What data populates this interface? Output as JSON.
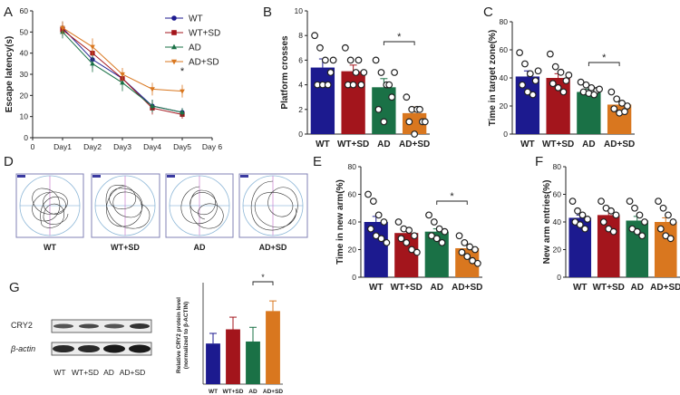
{
  "colors": {
    "wt": "#1c1a8f",
    "wt_sd": "#a3151c",
    "ad": "#1a7146",
    "ad_sd": "#d9771f",
    "axis": "#222222",
    "track_box": "#7f7fb5"
  },
  "panel_labels": [
    "A",
    "B",
    "C",
    "D",
    "E",
    "F",
    "G"
  ],
  "chart_data": [
    {
      "id": "A",
      "type": "line",
      "title": "",
      "ylabel": "Escape latency(s)",
      "xlabel": "",
      "ylim": [
        0,
        60
      ],
      "yticks": [
        0,
        10,
        20,
        30,
        40,
        50,
        60
      ],
      "xlim": [
        0,
        6
      ],
      "xticks": [
        "0",
        "Day1",
        "Day2",
        "Day3",
        "Day4",
        "Day5",
        "Day 6"
      ],
      "legend": "top-right",
      "significance": [
        {
          "x": 5,
          "label": "*"
        }
      ],
      "series": [
        {
          "name": "WT",
          "color_key": "wt",
          "marker": "circle",
          "x": [
            1,
            2,
            3,
            4,
            5
          ],
          "y": [
            52,
            37,
            28,
            15,
            12
          ],
          "err": [
            3,
            4,
            3,
            3,
            2
          ]
        },
        {
          "name": "WT+SD",
          "color_key": "wt_sd",
          "marker": "square",
          "x": [
            1,
            2,
            3,
            4,
            5
          ],
          "y": [
            51,
            40,
            28,
            14,
            11
          ],
          "err": [
            3,
            4,
            3,
            3,
            2
          ]
        },
        {
          "name": "AD",
          "color_key": "ad",
          "marker": "triangle-up",
          "x": [
            1,
            2,
            3,
            4,
            5
          ],
          "y": [
            50,
            35,
            26,
            15,
            12
          ],
          "err": [
            3,
            4,
            4,
            3,
            2
          ]
        },
        {
          "name": "AD+SD",
          "color_key": "ad_sd",
          "marker": "triangle-down",
          "x": [
            1,
            2,
            3,
            4,
            5
          ],
          "y": [
            52,
            43,
            30,
            23,
            22
          ],
          "err": [
            3,
            4,
            3,
            3,
            3
          ]
        }
      ]
    },
    {
      "id": "B",
      "type": "bar",
      "ylabel": "Platform crosses",
      "ylim": [
        0,
        10
      ],
      "yticks": [
        0,
        2,
        4,
        6,
        8,
        10
      ],
      "categories": [
        "WT",
        "WT+SD",
        "AD",
        "AD+SD"
      ],
      "values": [
        5.4,
        5.1,
        3.8,
        1.7
      ],
      "err": [
        0.7,
        0.5,
        0.7,
        0.5
      ],
      "points": [
        [
          8,
          7,
          6,
          5,
          4,
          4,
          4,
          6
        ],
        [
          7,
          6,
          5,
          4,
          4,
          4,
          6,
          5
        ],
        [
          6,
          5,
          4,
          3,
          2,
          1,
          4,
          5
        ],
        [
          3,
          2,
          2,
          1,
          1,
          0,
          2,
          1
        ]
      ],
      "significance": [
        {
          "from": 2,
          "to": 3,
          "label": "*"
        }
      ]
    },
    {
      "id": "C",
      "type": "bar",
      "ylabel": "Time in target zone(%)",
      "ylim": [
        0,
        80
      ],
      "yticks": [
        0,
        20,
        40,
        60,
        80
      ],
      "categories": [
        "WT",
        "WT+SD",
        "AD",
        "AD+SD"
      ],
      "values": [
        41,
        40,
        30,
        21
      ],
      "err": [
        4,
        3,
        2,
        2
      ],
      "points": [
        [
          58,
          50,
          43,
          38,
          35,
          30,
          28,
          45
        ],
        [
          57,
          48,
          44,
          38,
          36,
          33,
          30,
          42
        ],
        [
          37,
          35,
          33,
          31,
          30,
          29,
          28,
          32
        ],
        [
          30,
          25,
          22,
          20,
          18,
          15,
          16
        ]
      ],
      "significance": [
        {
          "from": 2,
          "to": 3,
          "label": "*"
        }
      ]
    },
    {
      "id": "E",
      "type": "bar",
      "ylabel": "Time in new arm(%)",
      "ylim": [
        0,
        80
      ],
      "yticks": [
        0,
        20,
        40,
        60,
        80
      ],
      "categories": [
        "WT",
        "WT+SD",
        "AD",
        "AD+SD"
      ],
      "values": [
        40,
        32,
        33,
        21
      ],
      "err": [
        4,
        3,
        2,
        3
      ],
      "points": [
        [
          60,
          55,
          45,
          40,
          35,
          30,
          28,
          25
        ],
        [
          40,
          35,
          34,
          30,
          28,
          25,
          20,
          18
        ],
        [
          45,
          40,
          35,
          33,
          30,
          28,
          25
        ],
        [
          30,
          25,
          22,
          20,
          18,
          15,
          12,
          10
        ]
      ],
      "significance": [
        {
          "from": 2,
          "to": 3,
          "label": "*"
        }
      ]
    },
    {
      "id": "F",
      "type": "bar",
      "ylabel": "New arm entries(%)",
      "ylim": [
        0,
        80
      ],
      "yticks": [
        0,
        20,
        40,
        60,
        80
      ],
      "categories": [
        "WT",
        "WT+SD",
        "AD",
        "AD+SD"
      ],
      "values": [
        43,
        45,
        41,
        40
      ],
      "err": [
        2,
        3,
        3,
        3
      ],
      "points": [
        [
          55,
          48,
          45,
          42,
          40,
          38,
          35
        ],
        [
          55,
          50,
          48,
          45,
          40,
          35,
          33
        ],
        [
          55,
          50,
          45,
          40,
          35,
          33,
          30
        ],
        [
          55,
          50,
          45,
          40,
          35,
          30,
          28
        ]
      ],
      "significance": []
    },
    {
      "id": "G",
      "type": "bar",
      "ylabel": "Relative CRY2 protein level",
      "ylabel2": "(normalized to β-ACTIN)",
      "ylim": [
        0,
        2.5
      ],
      "categories": [
        "WT",
        "WT+SD",
        "AD",
        "AD+SD"
      ],
      "values": [
        1.0,
        1.35,
        1.05,
        1.8
      ],
      "err": [
        0.25,
        0.3,
        0.35,
        0.25
      ],
      "significance": [
        {
          "from": 2,
          "to": 3,
          "label": "*"
        }
      ]
    }
  ],
  "panel_d": {
    "labels": [
      "WT",
      "WT+SD",
      "AD",
      "AD+SD"
    ]
  },
  "panel_g_blot": {
    "rows": [
      "CRY2",
      "β-actin"
    ],
    "lanes": [
      "WT",
      "WT+SD",
      "AD",
      "AD+SD"
    ]
  }
}
